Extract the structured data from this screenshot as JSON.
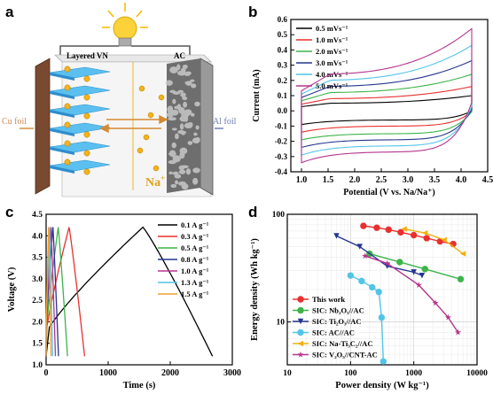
{
  "panel_a": {
    "label": "a",
    "left_electrode": "Layered VN",
    "right_electrode": "AC",
    "left_foil": "Cu foil",
    "right_foil": "Al foil",
    "ion": "Na",
    "ion_charge": "+"
  },
  "panel_b": {
    "label": "b"
  },
  "panel_c": {
    "label": "c"
  },
  "panel_d": {
    "label": "d"
  },
  "chart_data": [
    {
      "type": "line",
      "panel": "b",
      "xlabel": "Potential (V vs. Na/Na⁺)",
      "ylabel": "Current (mA)",
      "xlim": [
        0.8,
        4.5
      ],
      "ylim": [
        -0.4,
        0.6
      ],
      "xticks": [
        "1.0",
        "1.5",
        "2.0",
        "2.5",
        "3.0",
        "3.5",
        "4.0",
        "4.5"
      ],
      "yticks": [
        "-0.4",
        "-0.3",
        "-0.2",
        "-0.1",
        "0.0",
        "0.1",
        "0.2",
        "0.3",
        "0.4",
        "0.5",
        "0.6"
      ],
      "legend_position": "top-left",
      "x_range": [
        1.0,
        4.2
      ],
      "series": [
        {
          "name": "0.5 mVs⁻¹",
          "color": "#000000",
          "top": 0.05,
          "top_end": 0.1,
          "bottom": -0.06,
          "bottom_start": -0.09
        },
        {
          "name": "1.0 mVs⁻¹",
          "color": "#e8312f",
          "top": 0.08,
          "top_end": 0.16,
          "bottom": -0.1,
          "bottom_start": -0.14
        },
        {
          "name": "2.0 mVs⁻¹",
          "color": "#3cb449",
          "top": 0.12,
          "top_end": 0.24,
          "bottom": -0.15,
          "bottom_start": -0.19
        },
        {
          "name": "3.0 mVs⁻¹",
          "color": "#24358f",
          "top": 0.16,
          "top_end": 0.33,
          "bottom": -0.19,
          "bottom_start": -0.24
        },
        {
          "name": "4.0 mVs⁻¹",
          "color": "#53c4e8",
          "top": 0.2,
          "top_end": 0.43,
          "bottom": -0.23,
          "bottom_start": -0.29
        },
        {
          "name": "5.0 mVs⁻¹",
          "color": "#b5358d",
          "top": 0.24,
          "top_end": 0.54,
          "bottom": -0.27,
          "bottom_start": -0.34
        }
      ]
    },
    {
      "type": "line",
      "panel": "c",
      "xlabel": "Time (s)",
      "ylabel": "Voltage (V)",
      "xlim": [
        0,
        3000
      ],
      "ylim": [
        1.0,
        4.5
      ],
      "xticks": [
        "0",
        "1000",
        "2000",
        "3000"
      ],
      "yticks": [
        "1.0",
        "1.5",
        "2.0",
        "2.5",
        "3.0",
        "3.5",
        "4.0",
        "4.5"
      ],
      "legend_position": "top-right",
      "v_min": 1.2,
      "v_max": 4.2,
      "series": [
        {
          "name": "0.1 A g⁻¹",
          "color": "#000000",
          "t_peak": 1560,
          "t_end": 2680
        },
        {
          "name": "0.3 A g⁻¹",
          "color": "#e8312f",
          "t_peak": 370,
          "t_end": 620
        },
        {
          "name": "0.5 A g⁻¹",
          "color": "#3cb449",
          "t_peak": 195,
          "t_end": 345
        },
        {
          "name": "0.8 A g⁻¹",
          "color": "#24358f",
          "t_peak": 110,
          "t_end": 200
        },
        {
          "name": "1.0 A g⁻¹",
          "color": "#b5358d",
          "t_peak": 80,
          "t_end": 150
        },
        {
          "name": "1.3 A g⁻¹",
          "color": "#53c4e8",
          "t_peak": 55,
          "t_end": 105
        },
        {
          "name": "1.5 A g⁻¹",
          "color": "#f0a030",
          "t_peak": 40,
          "t_end": 80
        }
      ]
    },
    {
      "type": "scatter",
      "panel": "d",
      "xlabel": "Power density (W kg⁻¹)",
      "ylabel": "Energy density (Wh kg⁻¹)",
      "xscale": "log",
      "yscale": "log",
      "xlim": [
        10,
        10000
      ],
      "ylim": [
        4,
        100
      ],
      "xticks": [
        "10",
        "100",
        "1000",
        "10000"
      ],
      "yticks": [
        "10",
        "100"
      ],
      "legend_position": "bottom-left",
      "series": [
        {
          "name": "This work",
          "color": "#e8312f",
          "marker": "circle",
          "points": [
            [
              160,
              78
            ],
            [
              260,
              75
            ],
            [
              400,
              72
            ],
            [
              620,
              68
            ],
            [
              1000,
              64
            ],
            [
              1600,
              60
            ],
            [
              2600,
              56
            ],
            [
              4200,
              53
            ]
          ]
        },
        {
          "name": "SIC: Nb₂O₅//AC",
          "color": "#3cb449",
          "marker": "circle",
          "points": [
            [
              200,
              43
            ],
            [
              600,
              36
            ],
            [
              1500,
              31
            ],
            [
              5500,
              25
            ]
          ]
        },
        {
          "name": "SIC: Ti₂O₃//AC",
          "color": "#24358f",
          "marker": "triangle-down",
          "points": [
            [
              60,
              63
            ],
            [
              140,
              50
            ],
            [
              380,
              33
            ],
            [
              1000,
              29
            ],
            [
              1350,
              27
            ]
          ]
        },
        {
          "name": "SIC: AC//AC",
          "color": "#53c4e8",
          "marker": "circle",
          "points": [
            [
              100,
              27
            ],
            [
              150,
              24
            ],
            [
              220,
              21
            ],
            [
              280,
              19
            ],
            [
              310,
              11
            ],
            [
              330,
              4.3
            ]
          ]
        },
        {
          "name": "SIC: Na-Ti₃C₂//AC",
          "color": "#f0b010",
          "marker": "triangle-left",
          "points": [
            [
              700,
              73
            ],
            [
              1500,
              67
            ],
            [
              3000,
              58
            ],
            [
              6000,
              43
            ]
          ]
        },
        {
          "name": "SIC: V₂O₅//CNT-AC",
          "color": "#b5358d",
          "marker": "star",
          "points": [
            [
              170,
              41
            ],
            [
              380,
              35
            ],
            [
              1200,
              22
            ],
            [
              2200,
              15
            ],
            [
              3500,
              11
            ],
            [
              5000,
              8
            ]
          ]
        }
      ]
    }
  ]
}
